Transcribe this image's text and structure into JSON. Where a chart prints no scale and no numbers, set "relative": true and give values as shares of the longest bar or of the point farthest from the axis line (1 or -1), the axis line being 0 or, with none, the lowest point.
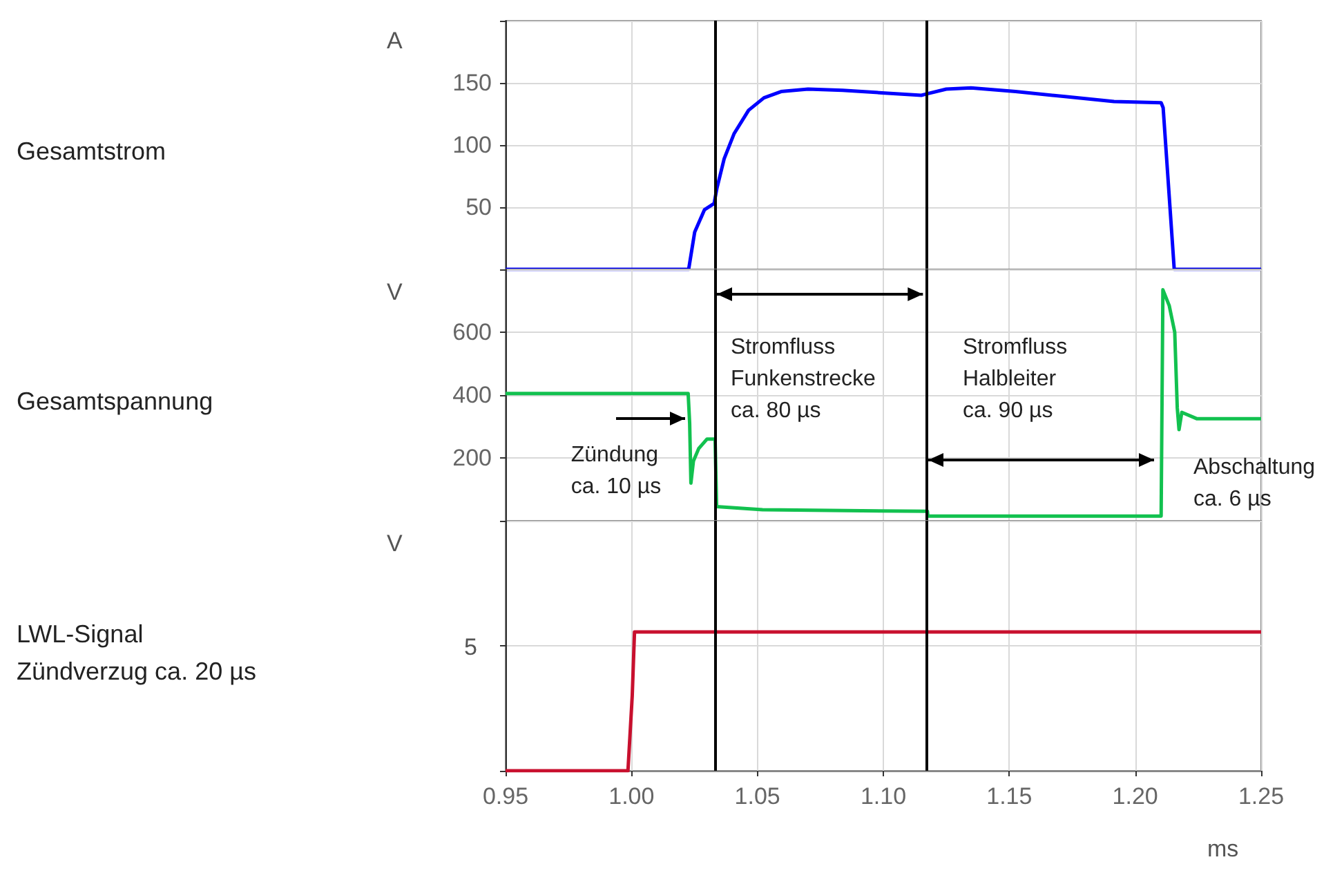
{
  "chart_data": [
    {
      "type": "line",
      "ylabel": "Gesamtstrom",
      "color": "#0000ff",
      "marker": "none",
      "grid": true,
      "tick_labels": "y",
      "x": [
        0.95,
        1.0227,
        1.0251,
        1.029,
        1.0328,
        1.0339,
        1.0368,
        1.0407,
        1.0465,
        1.0526,
        1.0594,
        1.0701,
        1.0838,
        1.0995,
        1.1151,
        1.117,
        1.125,
        1.1348,
        1.1525,
        1.1721,
        1.1916,
        1.2103,
        1.2111,
        1.2155,
        1.25
      ],
      "values": [
        0,
        0,
        30,
        48,
        53,
        65,
        89,
        109,
        128,
        138,
        143,
        145,
        144,
        142,
        140,
        141,
        145,
        146,
        143,
        139,
        135,
        134,
        130,
        0,
        0
      ],
      "xlim": [
        0.95,
        1.25
      ],
      "xticks": [
        0.95,
        1,
        1.05,
        1.1,
        1.15,
        1.2,
        1.25
      ],
      "ylim": [
        0,
        200
      ],
      "yticks": [
        {
          "value": 0,
          "label": null
        },
        50,
        100,
        150,
        {
          "value": 200,
          "label": null
        }
      ],
      "ref_lines": [
        {
          "axis": "x",
          "value": 1.033,
          "color": "#000000"
        },
        {
          "axis": "x",
          "value": 1.117,
          "color": "#000000"
        }
      ],
      "annotations": [
        "A"
      ]
    },
    {
      "type": "line",
      "ylabel": "Gesamtspannung",
      "color": "#12c14f",
      "marker": "none",
      "grid": true,
      "tick_labels": "y",
      "x": [
        0.95,
        1.0225,
        1.0231,
        1.0236,
        1.0246,
        1.0267,
        1.03,
        1.0332,
        1.0338,
        1.052,
        1.1175,
        1.1177,
        1.2103,
        1.211,
        1.2135,
        1.2157,
        1.2167,
        1.2174,
        1.2185,
        1.2244,
        1.25
      ],
      "values": [
        405,
        405,
        310,
        120,
        190,
        230,
        260,
        260,
        45,
        35,
        30,
        15,
        15,
        735,
        685,
        600,
        360,
        290,
        345,
        325,
        325
      ],
      "xlim": [
        0.95,
        1.25
      ],
      "xticks": [
        0.95,
        1,
        1.05,
        1.1,
        1.15,
        1.2,
        1.25
      ],
      "ylim": [
        0,
        800
      ],
      "yticks": [
        {
          "value": 0,
          "label": null
        },
        200,
        400,
        600,
        {
          "value": 800,
          "label": null
        }
      ],
      "ref_lines": [
        {
          "axis": "x",
          "value": 1.033,
          "color": "#000000"
        },
        {
          "axis": "x",
          "value": 1.117,
          "color": "#000000"
        }
      ],
      "annotations": [
        "V",
        {
          "text": "Zündung\nca. 10 µs",
          "x": 1.0215,
          "y": 325
        },
        "Stromfluss\nFunkenstrecke\nca. 80 µs",
        "Stromfluss\nHalbleiter\nca. 90 µs",
        "Abschaltung\nca. 6 µs"
      ]
    },
    {
      "type": "line",
      "ylabel": "LWL-Signal\nZündverzug ca. 20 µs",
      "xlabel": "ms",
      "color": "#c8102e",
      "marker": "none",
      "grid": true,
      "relative": true,
      "x": [
        0.95,
        0.9986,
        1.0003,
        1.0012,
        1.25
      ],
      "values": [
        0,
        0,
        0.54,
        1,
        1
      ],
      "xlim": [
        0.95,
        1.25
      ],
      "xticks": [
        0.95,
        {
          "value": 1,
          "label": "1.00"
        },
        1.05,
        {
          "value": 1.1,
          "label": "1.10"
        },
        1.15,
        {
          "value": 1.2,
          "label": "1.20"
        },
        1.25
      ],
      "ref_lines": [
        {
          "axis": "x",
          "value": 1.033,
          "color": "#000000"
        },
        {
          "axis": "x",
          "value": 1.117,
          "color": "#000000"
        }
      ],
      "annotations": [
        "V",
        "5"
      ]
    }
  ]
}
